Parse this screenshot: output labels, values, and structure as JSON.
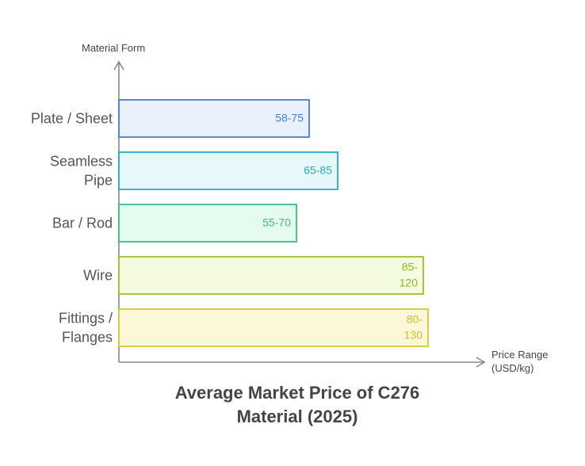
{
  "chart_data": {
    "type": "bar",
    "orientation": "horizontal",
    "title": "Average Market Price of C276 Material (2025)",
    "ylabel": "Material Form",
    "xlabel": "Price Range (USD/kg)",
    "grid": false,
    "categories": [
      "Plate / Sheet",
      "Seamless Pipe",
      "Bar / Rod",
      "Wire",
      "Fittings / Flanges"
    ],
    "ranges": [
      {
        "low": 58,
        "high": 75,
        "label": "58-75"
      },
      {
        "low": 65,
        "high": 85,
        "label": "65-85"
      },
      {
        "low": 55,
        "high": 70,
        "label": "55-70"
      },
      {
        "low": 85,
        "high": 120,
        "label": "85-120"
      },
      {
        "low": 80,
        "high": 130,
        "label": "80-130"
      }
    ],
    "colors": [
      {
        "stroke": "#4a7fc9",
        "fill": "#eaf1fd",
        "text": "#4a7fc9"
      },
      {
        "stroke": "#2aa9c9",
        "fill": "#e7f8fd",
        "text": "#2aa9c9"
      },
      {
        "stroke": "#3bbf7e",
        "fill": "#e6fbef",
        "text": "#3bbf7e"
      },
      {
        "stroke": "#99c230",
        "fill": "#f5fbdf",
        "text": "#8fb82a"
      },
      {
        "stroke": "#d9c82e",
        "fill": "#fcf7d9",
        "text": "#d4be23"
      }
    ]
  }
}
